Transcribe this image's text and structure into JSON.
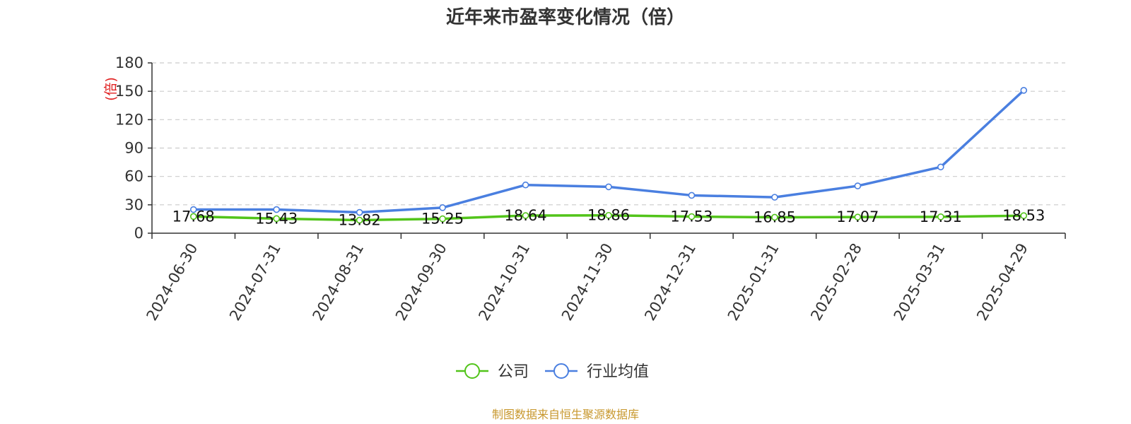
{
  "chart_data": {
    "type": "line",
    "title": "近年来市盈率变化情况（倍）",
    "ylabel": "(倍)",
    "ylim": [
      0,
      180
    ],
    "yticks": [
      0,
      30,
      60,
      90,
      120,
      150,
      180
    ],
    "grid": true,
    "legend_position": "bottom-center",
    "x": [
      "2024-06-30",
      "2024-07-31",
      "2024-08-31",
      "2024-09-30",
      "2024-10-31",
      "2024-11-30",
      "2024-12-31",
      "2025-01-31",
      "2025-02-28",
      "2025-03-31",
      "2025-04-29"
    ],
    "series": [
      {
        "name": "公司",
        "color": "#52c41a",
        "values": [
          17.68,
          15.43,
          13.82,
          15.25,
          18.64,
          18.86,
          17.53,
          16.85,
          17.07,
          17.31,
          18.53
        ],
        "labels": [
          "17.68",
          "15.43",
          "13.82",
          "15.25",
          "18.64",
          "18.86",
          "17.53",
          "16.85",
          "17.07",
          "17.31",
          "18.53"
        ]
      },
      {
        "name": "行业均值",
        "color": "#4a7fe0",
        "values": [
          25,
          25,
          22,
          27,
          51,
          49,
          40,
          38,
          50,
          70,
          151
        ]
      }
    ]
  },
  "source": "制图数据来自恒生聚源数据库",
  "colors": {
    "ylabel": "#e02020",
    "source": "#c8982e",
    "grid": "#cccccc",
    "axis": "#333333"
  }
}
